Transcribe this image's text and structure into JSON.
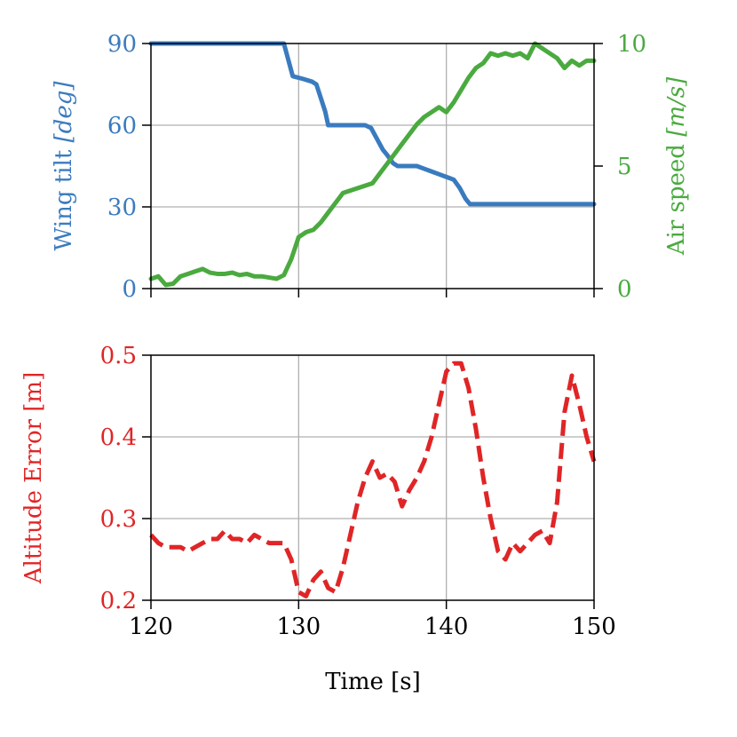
{
  "colors": {
    "tilt": "#3a7bbf",
    "airspeed": "#4aaa3f",
    "altitude": "#e02526",
    "grid": "#b0b0b0",
    "axis": "#000000"
  },
  "chart_data": [
    {
      "type": "line",
      "xlim": [
        120,
        150
      ],
      "x_ticks": [
        120,
        130,
        140,
        150
      ],
      "grid": true,
      "y_left": {
        "label_main": "Wing tilt ",
        "label_unit": "[deg]",
        "ylim": [
          0,
          90
        ],
        "ticks": [
          0,
          30,
          60,
          90
        ],
        "color": "#3a7bbf"
      },
      "y_right": {
        "label_main": "Air speed ",
        "label_unit": "[m/s]",
        "ylim": [
          0,
          10
        ],
        "ticks": [
          0,
          5,
          10
        ],
        "color": "#4aaa3f"
      },
      "series": [
        {
          "axis": "left",
          "style": "solid",
          "color": "#3a7bbf",
          "x": [
            120,
            129,
            129.3,
            129.6,
            130.3,
            130.9,
            131.2,
            131.5,
            131.8,
            132.0,
            133.0,
            134.0,
            134.5,
            134.9,
            135.3,
            135.7,
            136.0,
            136.4,
            136.7,
            137.0,
            138.0,
            138.5,
            139.0,
            139.5,
            140.0,
            140.5,
            140.9,
            141.3,
            141.6,
            142.0,
            143.0,
            145.0,
            150.0
          ],
          "y": [
            90,
            90,
            84,
            78,
            77,
            76,
            75,
            70,
            65,
            60,
            60,
            60,
            60,
            59,
            55,
            51,
            49,
            46,
            45,
            45,
            45,
            44,
            43,
            42,
            41,
            40,
            37,
            33,
            31,
            31,
            31,
            31,
            31
          ]
        },
        {
          "axis": "right",
          "style": "solid",
          "color": "#4aaa3f",
          "x": [
            120.0,
            120.5,
            121.0,
            121.5,
            122.0,
            122.5,
            123.0,
            123.5,
            124.0,
            124.5,
            125.0,
            125.5,
            126.0,
            126.5,
            127.0,
            127.5,
            128.0,
            128.5,
            129.0,
            129.5,
            130.0,
            130.5,
            131.0,
            131.5,
            132.0,
            132.5,
            133.0,
            133.5,
            134.0,
            134.5,
            135.0,
            135.5,
            136.0,
            136.5,
            137.0,
            137.5,
            138.0,
            138.5,
            139.0,
            139.5,
            140.0,
            140.5,
            141.0,
            141.5,
            142.0,
            142.5,
            143.0,
            143.5,
            144.0,
            144.5,
            145.0,
            145.5,
            146.0,
            146.5,
            147.0,
            147.5,
            148.0,
            148.5,
            149.0,
            149.5,
            150.0
          ],
          "y": [
            0.4,
            0.5,
            0.15,
            0.2,
            0.5,
            0.6,
            0.7,
            0.8,
            0.65,
            0.6,
            0.6,
            0.65,
            0.55,
            0.6,
            0.5,
            0.5,
            0.45,
            0.4,
            0.55,
            1.2,
            2.1,
            2.3,
            2.4,
            2.7,
            3.1,
            3.5,
            3.9,
            4.0,
            4.1,
            4.2,
            4.3,
            4.7,
            5.1,
            5.5,
            5.9,
            6.3,
            6.7,
            7.0,
            7.2,
            7.4,
            7.2,
            7.6,
            8.1,
            8.6,
            9.0,
            9.2,
            9.6,
            9.5,
            9.6,
            9.5,
            9.6,
            9.4,
            10.0,
            9.8,
            9.6,
            9.4,
            9.0,
            9.3,
            9.1,
            9.3,
            9.3
          ]
        }
      ]
    },
    {
      "type": "line",
      "xlim": [
        120,
        150
      ],
      "x_ticks": [
        120,
        130,
        140,
        150
      ],
      "grid": true,
      "xlabel": "Time [s]",
      "y_left": {
        "label": "Altitude Error [m]",
        "ylim": [
          0.2,
          0.5
        ],
        "ticks": [
          0.2,
          0.3,
          0.4,
          0.5
        ],
        "tick_labels": [
          "0.2",
          "0.3",
          "0.4",
          "0.5"
        ],
        "color": "#e02526"
      },
      "series": [
        {
          "axis": "left",
          "style": "dashed",
          "color": "#e02526",
          "x": [
            120.0,
            120.5,
            121.0,
            121.5,
            122.0,
            122.5,
            123.0,
            123.5,
            124.0,
            124.5,
            125.0,
            125.5,
            126.0,
            126.5,
            127.0,
            127.5,
            128.0,
            128.5,
            129.0,
            129.5,
            130.0,
            130.5,
            131.0,
            131.5,
            132.0,
            132.5,
            133.0,
            133.5,
            134.0,
            134.5,
            135.0,
            135.5,
            136.0,
            136.5,
            137.0,
            137.5,
            138.0,
            138.5,
            139.0,
            139.5,
            140.0,
            140.5,
            141.0,
            141.5,
            142.0,
            142.5,
            143.0,
            143.5,
            144.0,
            144.5,
            145.0,
            145.5,
            146.0,
            146.5,
            147.0,
            147.5,
            148.0,
            148.5,
            149.0,
            149.5,
            150.0
          ],
          "y": [
            0.28,
            0.27,
            0.265,
            0.265,
            0.265,
            0.26,
            0.265,
            0.27,
            0.275,
            0.275,
            0.285,
            0.275,
            0.275,
            0.27,
            0.28,
            0.275,
            0.27,
            0.27,
            0.27,
            0.25,
            0.21,
            0.205,
            0.225,
            0.235,
            0.215,
            0.21,
            0.24,
            0.28,
            0.32,
            0.35,
            0.37,
            0.35,
            0.355,
            0.345,
            0.315,
            0.335,
            0.35,
            0.37,
            0.4,
            0.44,
            0.48,
            0.49,
            0.49,
            0.46,
            0.41,
            0.35,
            0.3,
            0.26,
            0.25,
            0.27,
            0.26,
            0.27,
            0.28,
            0.285,
            0.27,
            0.32,
            0.43,
            0.475,
            0.44,
            0.4,
            0.37
          ]
        }
      ]
    }
  ]
}
